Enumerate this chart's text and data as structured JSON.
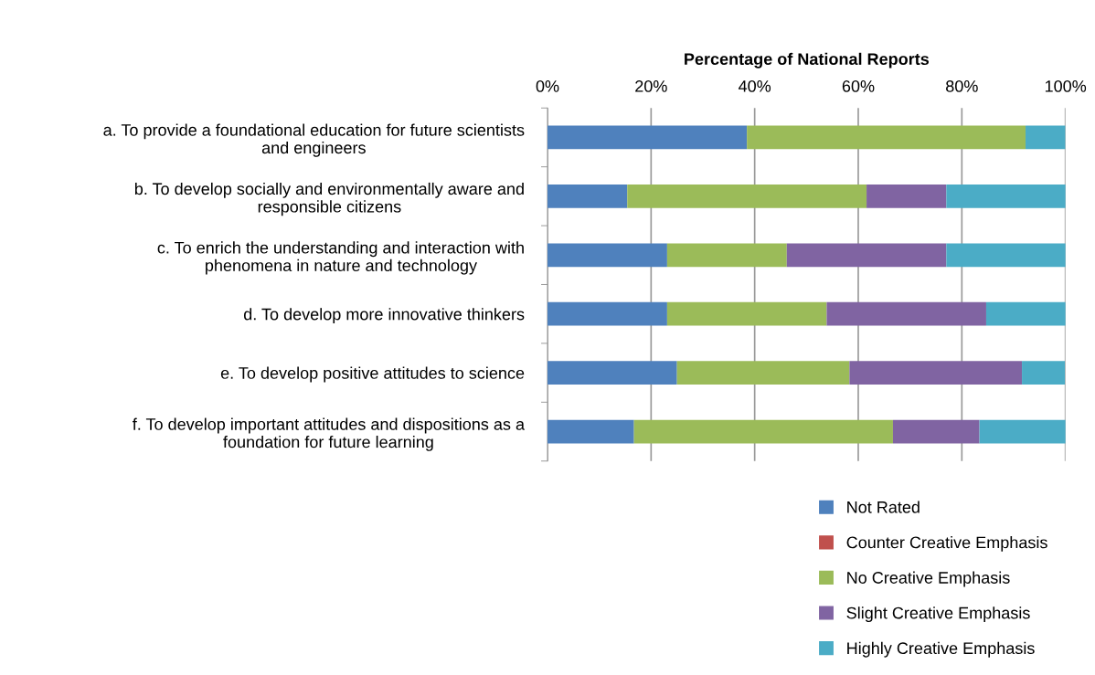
{
  "chart_data": {
    "type": "bar",
    "orientation": "horizontal",
    "stacked": true,
    "xlabel": "Percentage of National Reports",
    "categories": [
      "a. To provide a foundational education for future scientists\nand engineers",
      "b. To develop socially and environmentally aware and\nresponsible citizens",
      "c. To enrich the understanding and interaction with\nphenomena in nature and technology",
      "d. To develop more innovative thinkers",
      "e. To develop positive attitudes to science",
      "f. To develop important attitudes and dispositions as a\nfoundation for future learning"
    ],
    "series": [
      {
        "name": "Not Rated",
        "color": "#4f81bd",
        "values": [
          38.5,
          15.4,
          23.1,
          23.1,
          25.0,
          16.7
        ]
      },
      {
        "name": "Counter Creative Emphasis",
        "color": "#c0504d",
        "values": [
          0,
          0,
          0,
          0,
          0,
          0
        ]
      },
      {
        "name": "No Creative Emphasis",
        "color": "#9bbb59",
        "values": [
          53.8,
          46.2,
          23.1,
          30.8,
          33.3,
          50.0
        ]
      },
      {
        "name": "Slight Creative Emphasis",
        "color": "#8064a2",
        "values": [
          0,
          15.4,
          30.8,
          30.8,
          33.3,
          16.7
        ]
      },
      {
        "name": "Highly Creative Emphasis",
        "color": "#4bacc6",
        "values": [
          7.7,
          23.1,
          23.1,
          15.4,
          8.3,
          16.7
        ]
      }
    ],
    "xlim": [
      0,
      100
    ],
    "xticks": [
      {
        "value": 0,
        "label": "0%"
      },
      {
        "value": 20,
        "label": "20%"
      },
      {
        "value": 40,
        "label": "40%"
      },
      {
        "value": 60,
        "label": "60%"
      },
      {
        "value": 80,
        "label": "80%"
      },
      {
        "value": 100,
        "label": "100%"
      }
    ],
    "grid": "x",
    "legend": "bottom"
  }
}
